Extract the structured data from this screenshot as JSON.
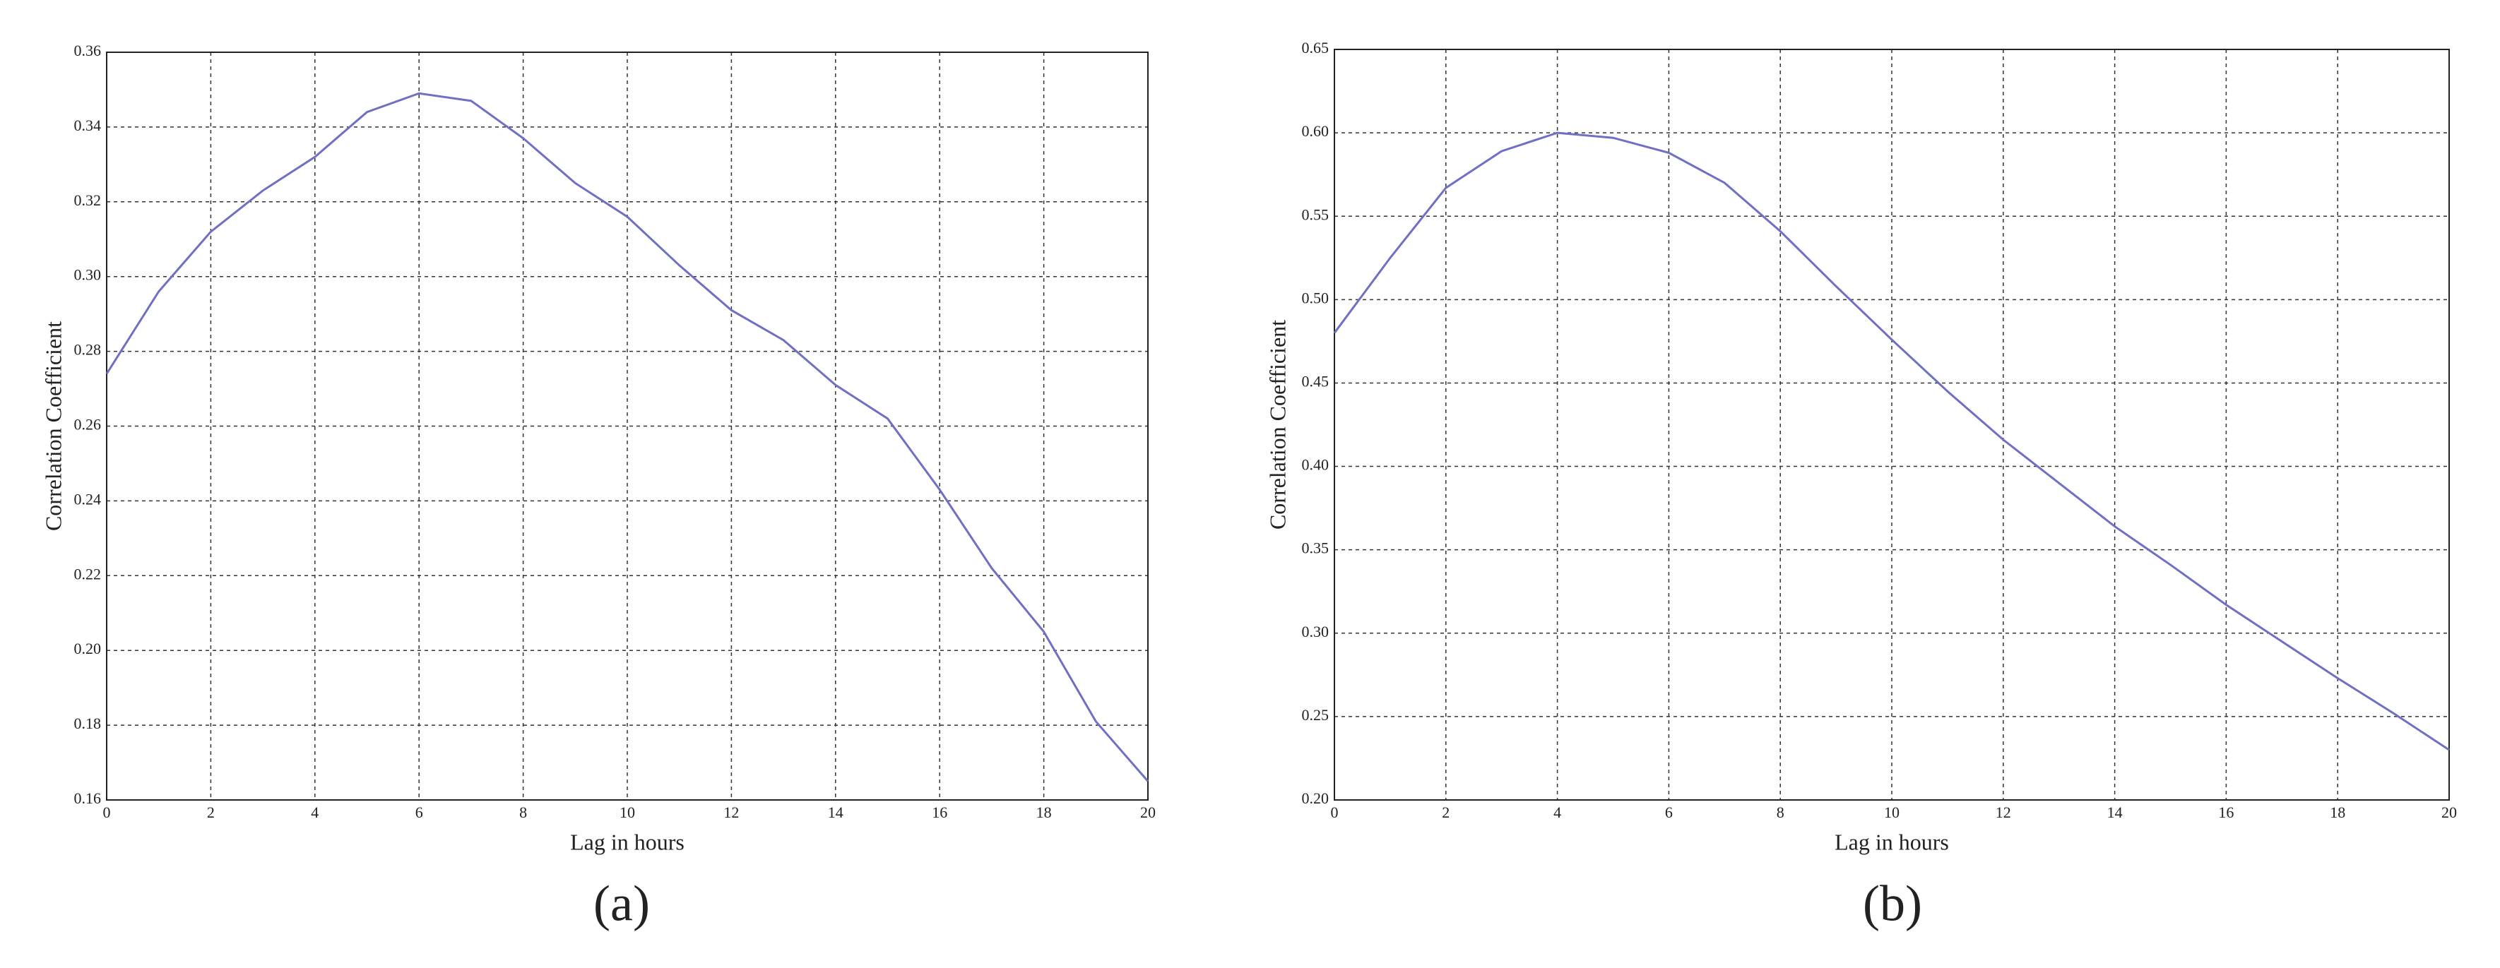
{
  "chart_data": [
    {
      "type": "line",
      "caption": "(a)",
      "x_label": "Lag in hours",
      "y_label": "Correlation Coefficient",
      "x": [
        0,
        1,
        2,
        3,
        4,
        5,
        6,
        7,
        8,
        9,
        10,
        11,
        12,
        13,
        14,
        15,
        16,
        17,
        18,
        19,
        20
      ],
      "series": [
        {
          "color": "#6f6fc4",
          "values": [
            0.274,
            0.296,
            0.312,
            0.323,
            0.332,
            0.344,
            0.349,
            0.347,
            0.337,
            0.325,
            0.316,
            0.303,
            0.291,
            0.283,
            0.271,
            0.262,
            0.243,
            0.222,
            0.205,
            0.181,
            0.165
          ]
        }
      ],
      "xlim": [
        0,
        20
      ],
      "xticks": [
        0,
        2,
        4,
        6,
        8,
        10,
        12,
        14,
        16,
        18,
        20
      ],
      "ylim": [
        0.16,
        0.36
      ],
      "yticks": [
        0.16,
        0.18,
        {
          "value": 0.2,
          "label": "0.20"
        },
        0.22,
        0.24,
        0.26,
        0.28,
        {
          "value": 0.3,
          "label": "0.30"
        },
        0.32,
        0.34,
        0.36
      ],
      "grid": true
    },
    {
      "type": "line",
      "caption": "(b)",
      "x_label": "Lag in hours",
      "y_label": "Correlation Coefficient",
      "x": [
        0,
        1,
        2,
        3,
        4,
        5,
        6,
        7,
        8,
        9,
        10,
        11,
        12,
        13,
        14,
        15,
        16,
        17,
        18,
        19,
        20
      ],
      "series": [
        {
          "color": "#6f6fc4",
          "values": [
            0.48,
            0.525,
            0.567,
            0.589,
            0.6,
            0.597,
            0.588,
            0.57,
            0.541,
            0.508,
            0.476,
            0.445,
            0.416,
            0.39,
            0.364,
            0.341,
            0.317,
            0.295,
            0.273,
            0.252,
            0.23
          ]
        }
      ],
      "xlim": [
        0,
        20
      ],
      "xticks": [
        0,
        2,
        4,
        6,
        8,
        10,
        12,
        14,
        16,
        18,
        20
      ],
      "ylim": [
        0.2,
        0.65
      ],
      "yticks": [
        {
          "value": 0.2,
          "label": "0.20"
        },
        0.25,
        {
          "value": 0.3,
          "label": "0.30"
        },
        0.35,
        {
          "value": 0.4,
          "label": "0.40"
        },
        0.45,
        {
          "value": 0.5,
          "label": "0.50"
        },
        0.55,
        {
          "value": 0.6,
          "label": "0.60"
        },
        0.65
      ],
      "grid": true
    }
  ]
}
